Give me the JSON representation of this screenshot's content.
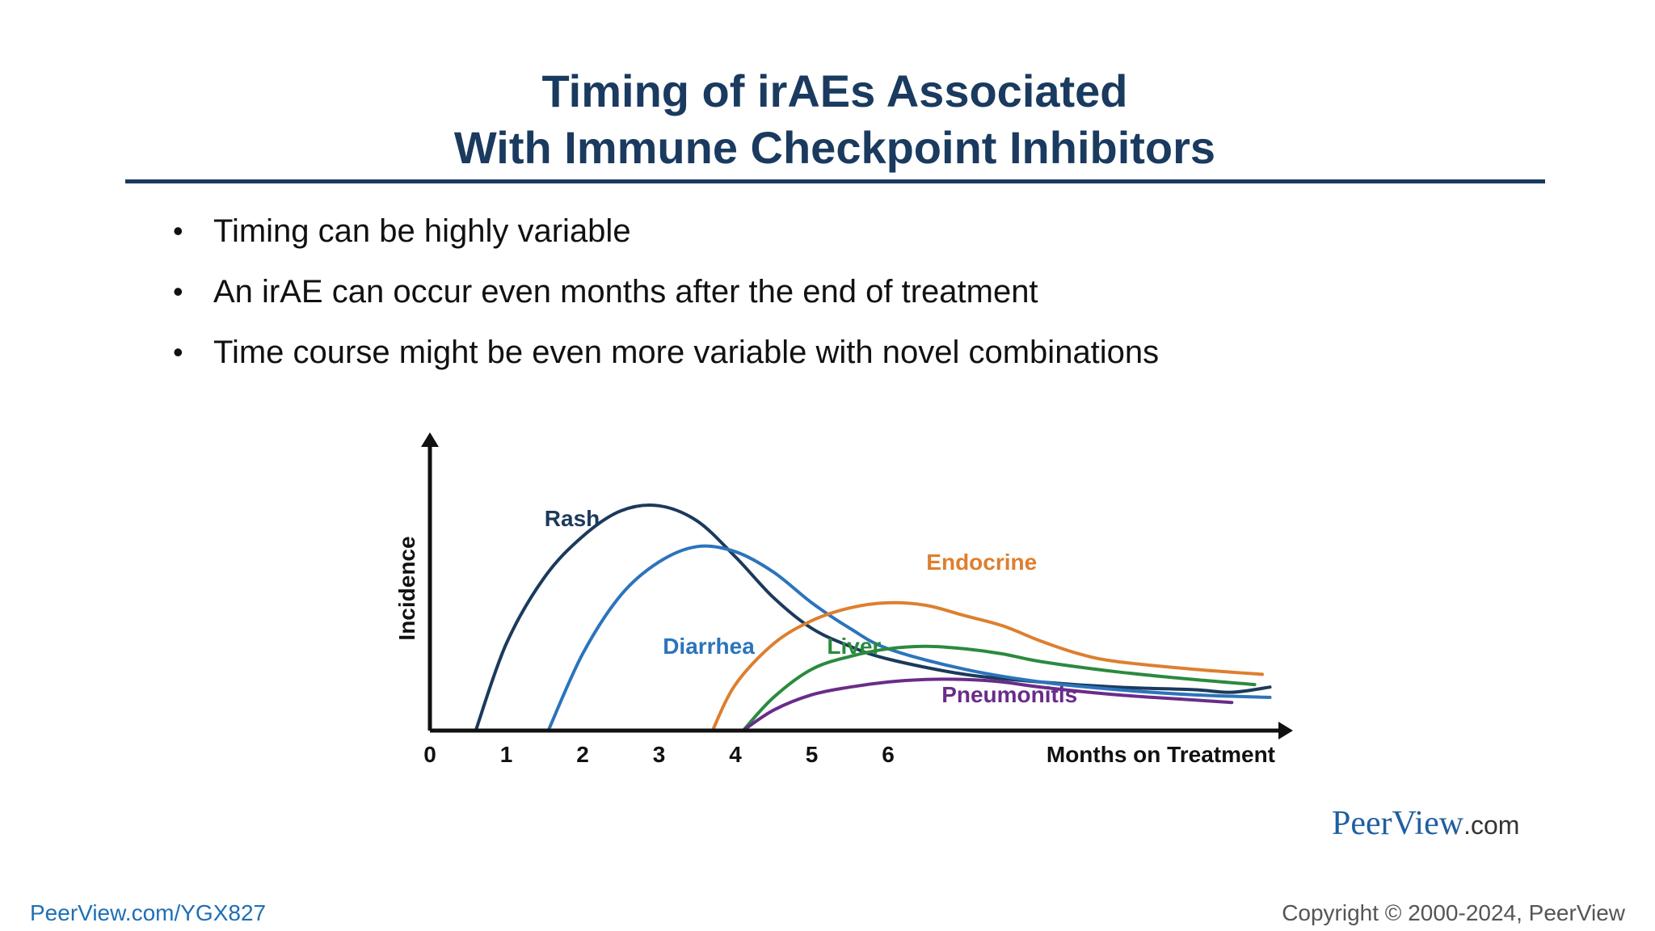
{
  "slide": {
    "title_line1": "Timing of irAEs Associated",
    "title_line2": "With Immune Checkpoint Inhibitors",
    "bullets": [
      "Timing can be highly variable",
      "An irAE can occur even months after the end of treatment",
      "Time course might be even more variable with novel combinations"
    ],
    "bullet_glyph": "•"
  },
  "footer": {
    "brand_main": "PeerView",
    "brand_suffix": ".com",
    "link": "PeerView.com/YGX827",
    "copyright": "Copyright © 2000-2024, PeerView"
  },
  "colors": {
    "title": "#1a3a5f",
    "axis": "#111111"
  },
  "chart_data": {
    "type": "line",
    "xlabel": "Months on Treatment",
    "ylabel": "Incidence",
    "xticks": [
      0,
      1,
      2,
      3,
      4,
      5,
      6
    ],
    "xlim": [
      0,
      11.2
    ],
    "ylim": [
      0,
      1.05
    ],
    "y_ticks_shown": false,
    "grid": false,
    "legend": "none",
    "series": [
      {
        "name": "Rash",
        "color": "#1b3a5c",
        "points": [
          [
            0.6,
            0
          ],
          [
            1.0,
            0.34
          ],
          [
            1.5,
            0.6
          ],
          [
            2.0,
            0.76
          ],
          [
            2.5,
            0.86
          ],
          [
            3.0,
            0.88
          ],
          [
            3.5,
            0.82
          ],
          [
            4.0,
            0.68
          ],
          [
            4.5,
            0.52
          ],
          [
            5.0,
            0.4
          ],
          [
            5.5,
            0.33
          ],
          [
            6.0,
            0.28
          ],
          [
            7.0,
            0.22
          ],
          [
            8.0,
            0.19
          ],
          [
            9.0,
            0.17
          ],
          [
            10.0,
            0.16
          ],
          [
            10.5,
            0.15
          ],
          [
            11.0,
            0.17
          ]
        ],
        "label_at": [
          1.5,
          0.8
        ]
      },
      {
        "name": "Diarrhea",
        "color": "#2c74bb",
        "points": [
          [
            1.55,
            0
          ],
          [
            2.0,
            0.3
          ],
          [
            2.5,
            0.53
          ],
          [
            3.0,
            0.66
          ],
          [
            3.5,
            0.72
          ],
          [
            4.0,
            0.7
          ],
          [
            4.5,
            0.62
          ],
          [
            5.0,
            0.5
          ],
          [
            5.5,
            0.4
          ],
          [
            6.0,
            0.32
          ],
          [
            7.0,
            0.24
          ],
          [
            8.0,
            0.19
          ],
          [
            9.0,
            0.16
          ],
          [
            10.0,
            0.14
          ],
          [
            11.0,
            0.13
          ]
        ],
        "label_at": [
          3.05,
          0.3
        ]
      },
      {
        "name": "Endocrine",
        "color": "#dd7f2f",
        "points": [
          [
            3.7,
            0
          ],
          [
            4.0,
            0.18
          ],
          [
            4.5,
            0.34
          ],
          [
            5.0,
            0.43
          ],
          [
            5.5,
            0.48
          ],
          [
            6.0,
            0.5
          ],
          [
            6.5,
            0.49
          ],
          [
            7.0,
            0.45
          ],
          [
            7.5,
            0.41
          ],
          [
            8.0,
            0.35
          ],
          [
            8.5,
            0.3
          ],
          [
            9.0,
            0.27
          ],
          [
            10.0,
            0.24
          ],
          [
            10.9,
            0.22
          ]
        ],
        "label_at": [
          6.5,
          0.63
        ]
      },
      {
        "name": "Liver",
        "color": "#2b8a3e",
        "points": [
          [
            4.1,
            0
          ],
          [
            4.5,
            0.13
          ],
          [
            5.0,
            0.24
          ],
          [
            5.5,
            0.29
          ],
          [
            6.0,
            0.32
          ],
          [
            6.5,
            0.33
          ],
          [
            7.0,
            0.32
          ],
          [
            7.5,
            0.3
          ],
          [
            8.0,
            0.27
          ],
          [
            9.0,
            0.23
          ],
          [
            10.0,
            0.2
          ],
          [
            10.8,
            0.18
          ]
        ],
        "label_at": [
          5.2,
          0.3
        ]
      },
      {
        "name": "Pneumonitis",
        "color": "#6a2c8a",
        "points": [
          [
            4.1,
            0
          ],
          [
            4.5,
            0.08
          ],
          [
            5.0,
            0.14
          ],
          [
            5.5,
            0.17
          ],
          [
            6.0,
            0.19
          ],
          [
            6.5,
            0.2
          ],
          [
            7.0,
            0.2
          ],
          [
            7.5,
            0.19
          ],
          [
            8.0,
            0.17
          ],
          [
            9.0,
            0.14
          ],
          [
            10.0,
            0.12
          ],
          [
            10.5,
            0.11
          ]
        ],
        "label_at": [
          6.7,
          0.11
        ]
      }
    ]
  }
}
